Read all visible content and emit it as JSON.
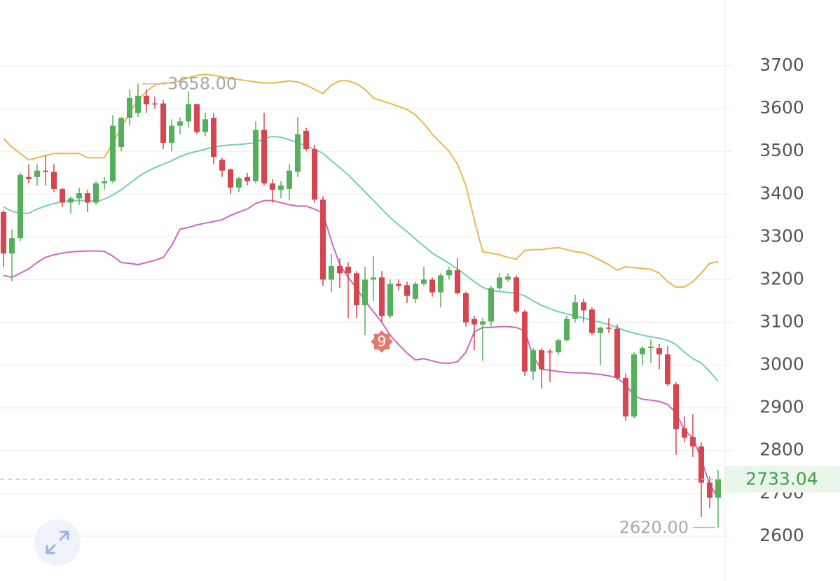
{
  "chart_data": {
    "type": "candlestick",
    "categories": [
      null,
      null,
      null,
      null,
      null,
      null,
      null,
      null,
      null,
      null,
      null,
      null,
      null,
      null,
      null,
      null,
      null,
      null,
      null,
      null,
      null,
      null,
      null,
      null,
      null,
      null,
      null,
      null,
      null,
      null,
      null,
      null,
      null,
      null,
      null,
      null,
      null,
      null,
      null,
      null,
      null,
      null,
      null,
      null,
      null,
      null,
      null,
      null,
      null,
      null,
      null,
      null,
      null,
      null,
      null,
      null,
      null,
      null,
      null,
      null,
      null,
      null,
      null,
      null,
      null,
      null,
      null,
      null,
      null,
      null,
      null,
      null,
      null,
      null,
      null,
      null,
      null,
      null,
      null,
      null,
      null,
      null,
      null,
      null,
      null,
      null
    ],
    "open": [
      3358,
      3261,
      3297,
      3440,
      3440,
      3455,
      3452,
      3412,
      3380,
      3390,
      3402,
      3380,
      3425,
      3430,
      3510,
      3578,
      3590,
      3630,
      3612,
      3612,
      3520,
      3560,
      3570,
      3610,
      3545,
      3578,
      3480,
      3458,
      3415,
      3440,
      3430,
      3550,
      3425,
      3410,
      3412,
      3452,
      3548,
      3505,
      3387,
      3200,
      3232,
      3230,
      3215,
      3140,
      3200,
      3205,
      3115,
      3190,
      3187,
      3155,
      3190,
      3200,
      3170,
      3210,
      3222,
      3168,
      3108,
      3095,
      3102,
      3180,
      3200,
      3205,
      3125,
      2985,
      3035,
      3032,
      3030,
      3058,
      3108,
      3147,
      3130,
      3075,
      3088,
      3085,
      2970,
      2880,
      3025,
      3040,
      3040,
      3025,
      2955,
      2852,
      2832,
      2810,
      2725,
      2690
    ],
    "high": [
      3363,
      3317,
      3450,
      3470,
      3470,
      3490,
      3470,
      3415,
      3395,
      3415,
      3410,
      3430,
      3440,
      3585,
      3580,
      3645,
      3658,
      3645,
      3628,
      3620,
      3575,
      3580,
      3640,
      3612,
      3590,
      3590,
      3485,
      3460,
      3440,
      3450,
      3570,
      3590,
      3435,
      3430,
      3470,
      3580,
      3555,
      3515,
      3395,
      3260,
      3250,
      3240,
      3220,
      3230,
      3255,
      3220,
      3200,
      3200,
      3195,
      3195,
      3230,
      3205,
      3215,
      3230,
      3250,
      3172,
      3115,
      3110,
      3185,
      3215,
      3215,
      3210,
      3130,
      3040,
      3040,
      3038,
      3062,
      3115,
      3165,
      3155,
      3135,
      3090,
      3110,
      3095,
      2980,
      3030,
      3045,
      3060,
      3050,
      3045,
      2960,
      2880,
      2885,
      2820,
      2740,
      2755
    ],
    "low": [
      3230,
      3196,
      3290,
      3425,
      3420,
      3420,
      3405,
      3370,
      3355,
      3375,
      3358,
      3375,
      3410,
      3425,
      3500,
      3560,
      3580,
      3590,
      3600,
      3505,
      3500,
      3540,
      3555,
      3540,
      3535,
      3470,
      3440,
      3400,
      3405,
      3420,
      3425,
      3420,
      3380,
      3390,
      3385,
      3440,
      3500,
      3380,
      3185,
      3170,
      3180,
      3110,
      3110,
      3070,
      3150,
      3100,
      3110,
      3175,
      3145,
      3145,
      3185,
      3160,
      3135,
      3200,
      3165,
      3090,
      3035,
      3010,
      3090,
      3175,
      3195,
      3120,
      2975,
      2965,
      2945,
      2960,
      3025,
      3055,
      3100,
      3100,
      3070,
      3000,
      3075,
      2965,
      2870,
      2875,
      3000,
      3005,
      2990,
      2950,
      2790,
      2820,
      2785,
      2645,
      2665,
      2620
    ],
    "close": [
      3261,
      3297,
      3445,
      3435,
      3455,
      3452,
      3412,
      3380,
      3390,
      3402,
      3380,
      3425,
      3430,
      3560,
      3578,
      3625,
      3630,
      3610,
      3610,
      3520,
      3560,
      3570,
      3610,
      3545,
      3575,
      3487,
      3455,
      3415,
      3437,
      3430,
      3550,
      3425,
      3410,
      3420,
      3455,
      3540,
      3505,
      3387,
      3200,
      3232,
      3215,
      3215,
      3140,
      3200,
      3205,
      3115,
      3190,
      3185,
      3162,
      3190,
      3200,
      3170,
      3210,
      3222,
      3168,
      3100,
      3095,
      3102,
      3180,
      3205,
      3207,
      3125,
      2985,
      3035,
      2990,
      3030,
      3058,
      3108,
      3147,
      3128,
      3075,
      3088,
      3085,
      2970,
      2880,
      3025,
      3040,
      3043,
      3025,
      2955,
      2850,
      2830,
      2810,
      2725,
      2690,
      2733.04
    ],
    "up_color": "#55b05c",
    "down_color": "#d64550",
    "overlays": [
      {
        "color": "#e9b84a",
        "values": [
          3530,
          3510,
          3495,
          3480,
          3485,
          3490,
          3495,
          3495,
          3495,
          3495,
          3485,
          3485,
          3485,
          3520,
          3555,
          3590,
          3620,
          3640,
          3655,
          3660,
          3660,
          3665,
          3672,
          3678,
          3680,
          3678,
          3674,
          3670,
          3668,
          3665,
          3662,
          3660,
          3660,
          3662,
          3665,
          3662,
          3655,
          3645,
          3635,
          3655,
          3665,
          3665,
          3658,
          3645,
          3625,
          3618,
          3612,
          3605,
          3598,
          3585,
          3565,
          3540,
          3520,
          3500,
          3470,
          3420,
          3340,
          3265,
          3262,
          3258,
          3252,
          3248,
          3268,
          3270,
          3270,
          3273,
          3275,
          3270,
          3265,
          3263,
          3255,
          3245,
          3235,
          3222,
          3230,
          3228,
          3226,
          3224,
          3215,
          3195,
          3182,
          3183,
          3195,
          3215,
          3238,
          3242
        ]
      },
      {
        "color": "#72cfb2",
        "values": [
          3370,
          3360,
          3355,
          3355,
          3365,
          3372,
          3378,
          3382,
          3385,
          3385,
          3385,
          3383,
          3388,
          3398,
          3410,
          3425,
          3440,
          3452,
          3462,
          3470,
          3478,
          3488,
          3495,
          3500,
          3505,
          3510,
          3513,
          3515,
          3516,
          3518,
          3520,
          3530,
          3535,
          3533,
          3527,
          3520,
          3513,
          3505,
          3495,
          3478,
          3462,
          3445,
          3425,
          3405,
          3385,
          3365,
          3345,
          3328,
          3312,
          3295,
          3278,
          3262,
          3250,
          3238,
          3225,
          3210,
          3195,
          3182,
          3175,
          3172,
          3170,
          3168,
          3162,
          3150,
          3140,
          3132,
          3125,
          3120,
          3115,
          3110,
          3105,
          3100,
          3095,
          3088,
          3080,
          3075,
          3070,
          3066,
          3063,
          3058,
          3048,
          3030,
          3015,
          3005,
          2985,
          2962
        ]
      },
      {
        "color": "#d066c0",
        "values": [
          3210,
          3205,
          3215,
          3225,
          3240,
          3252,
          3258,
          3262,
          3265,
          3266,
          3267,
          3267,
          3266,
          3255,
          3240,
          3238,
          3235,
          3240,
          3245,
          3252,
          3280,
          3318,
          3322,
          3328,
          3332,
          3336,
          3340,
          3350,
          3358,
          3365,
          3378,
          3385,
          3385,
          3380,
          3375,
          3372,
          3372,
          3365,
          3355,
          3290,
          3235,
          3205,
          3180,
          3150,
          3125,
          3100,
          3070,
          3048,
          3028,
          3012,
          3015,
          3010,
          3005,
          3004,
          3008,
          3030,
          3078,
          3088,
          3088,
          3090,
          3090,
          3088,
          3080,
          3020,
          2990,
          2988,
          2985,
          2983,
          2982,
          2982,
          2980,
          2978,
          2975,
          2970,
          2955,
          2928,
          2920,
          2918,
          2915,
          2908,
          2888,
          2848,
          2830,
          2780,
          2720,
          2690
        ]
      }
    ],
    "ylim": [
      2495,
      3854
    ],
    "yticks": [
      2600,
      2700,
      2800,
      2900,
      3000,
      3100,
      3200,
      3300,
      3400,
      3500,
      3600,
      3700
    ],
    "grid": true,
    "max_marker": {
      "value": 3658,
      "label": "3658.00"
    },
    "min_marker": {
      "value": 2620,
      "label": "2620.00"
    },
    "last_price": 2733.04,
    "signal_badge": "9"
  }
}
